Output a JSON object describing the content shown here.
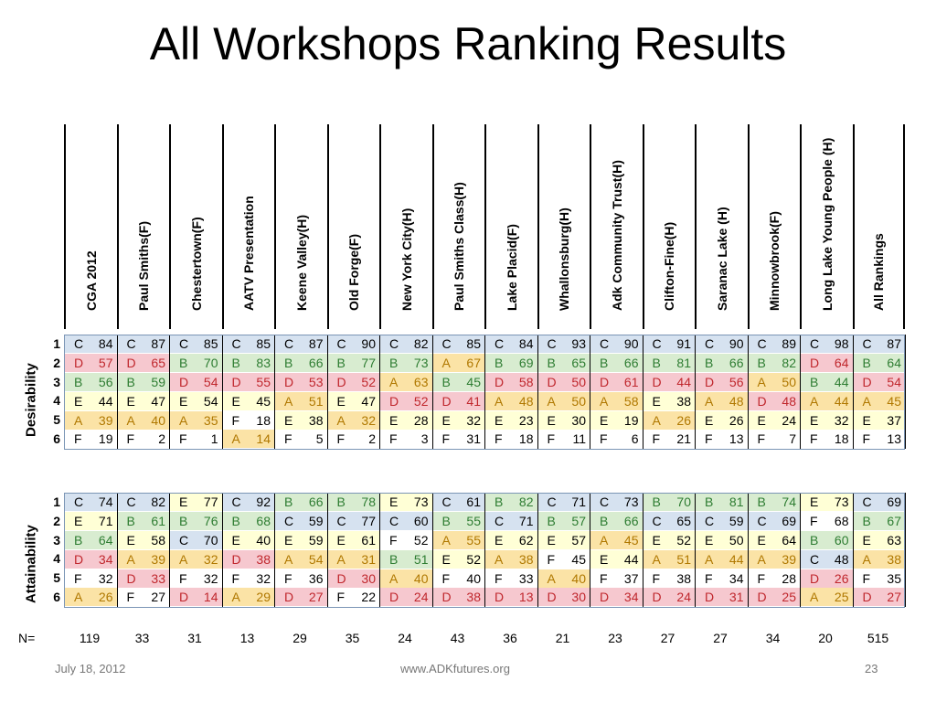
{
  "title": "All Workshops Ranking Results",
  "columns": [
    "CGA 2012",
    "Paul Smiths(F)",
    "Chestertown(F)",
    "AATV Presentation",
    "Keene Valley(H)",
    "Old Forge(F)",
    "New York City(H)",
    "Paul Smiths Class(H)",
    "Lake Placid(F)",
    "Whallonsburg(H)",
    "Adk Community Trust(H)",
    "Clifton-Fine(H)",
    "Saranac Lake (H)",
    "Minnowbrook(F)",
    "Long Lake Young People (H)",
    "All Rankings"
  ],
  "grade_colors": {
    "A": "#fbe3a6",
    "B": "#d8ecd0",
    "C": "#d6e2f0",
    "D": "#f6c8cf",
    "E": "#ffffd6",
    "F": "#ffffff"
  },
  "grade_text_colors": {
    "A": "#b07800",
    "B": "#2e7d32",
    "C": "#000000",
    "D": "#c0272d",
    "E": "#000000",
    "F": "#000000"
  },
  "desirability": {
    "label": "Desirability",
    "ranks": [
      "1",
      "2",
      "3",
      "4",
      "5",
      "6"
    ],
    "rows": [
      [
        [
          "C",
          "84"
        ],
        [
          "C",
          "87"
        ],
        [
          "C",
          "85"
        ],
        [
          "C",
          "85"
        ],
        [
          "C",
          "87"
        ],
        [
          "C",
          "90"
        ],
        [
          "C",
          "82"
        ],
        [
          "C",
          "85"
        ],
        [
          "C",
          "84"
        ],
        [
          "C",
          "93"
        ],
        [
          "C",
          "90"
        ],
        [
          "C",
          "91"
        ],
        [
          "C",
          "90"
        ],
        [
          "C",
          "89"
        ],
        [
          "C",
          "98"
        ],
        [
          "C",
          "87"
        ]
      ],
      [
        [
          "D",
          "57"
        ],
        [
          "D",
          "65"
        ],
        [
          "B",
          "70"
        ],
        [
          "B",
          "83"
        ],
        [
          "B",
          "66"
        ],
        [
          "B",
          "77"
        ],
        [
          "B",
          "73"
        ],
        [
          "A",
          "67"
        ],
        [
          "B",
          "69"
        ],
        [
          "B",
          "65"
        ],
        [
          "B",
          "66"
        ],
        [
          "B",
          "81"
        ],
        [
          "B",
          "66"
        ],
        [
          "B",
          "82"
        ],
        [
          "D",
          "64"
        ],
        [
          "B",
          "64"
        ]
      ],
      [
        [
          "B",
          "56"
        ],
        [
          "B",
          "59"
        ],
        [
          "D",
          "54"
        ],
        [
          "D",
          "55"
        ],
        [
          "D",
          "53"
        ],
        [
          "D",
          "52"
        ],
        [
          "A",
          "63"
        ],
        [
          "B",
          "45"
        ],
        [
          "D",
          "58"
        ],
        [
          "D",
          "50"
        ],
        [
          "D",
          "61"
        ],
        [
          "D",
          "44"
        ],
        [
          "D",
          "56"
        ],
        [
          "A",
          "50"
        ],
        [
          "B",
          "44"
        ],
        [
          "D",
          "54"
        ]
      ],
      [
        [
          "E",
          "44"
        ],
        [
          "E",
          "47"
        ],
        [
          "E",
          "54"
        ],
        [
          "E",
          "45"
        ],
        [
          "A",
          "51"
        ],
        [
          "E",
          "47"
        ],
        [
          "D",
          "52"
        ],
        [
          "D",
          "41"
        ],
        [
          "A",
          "48"
        ],
        [
          "A",
          "50"
        ],
        [
          "A",
          "58"
        ],
        [
          "E",
          "38"
        ],
        [
          "A",
          "48"
        ],
        [
          "D",
          "48"
        ],
        [
          "A",
          "44"
        ],
        [
          "A",
          "45"
        ]
      ],
      [
        [
          "A",
          "39"
        ],
        [
          "A",
          "40"
        ],
        [
          "A",
          "35"
        ],
        [
          "F",
          "18"
        ],
        [
          "E",
          "38"
        ],
        [
          "A",
          "32"
        ],
        [
          "E",
          "28"
        ],
        [
          "E",
          "32"
        ],
        [
          "E",
          "23"
        ],
        [
          "E",
          "30"
        ],
        [
          "E",
          "19"
        ],
        [
          "A",
          "26"
        ],
        [
          "E",
          "26"
        ],
        [
          "E",
          "24"
        ],
        [
          "E",
          "32"
        ],
        [
          "E",
          "37"
        ]
      ],
      [
        [
          "F",
          "19"
        ],
        [
          "F",
          "2"
        ],
        [
          "F",
          "1"
        ],
        [
          "A",
          "14"
        ],
        [
          "F",
          "5"
        ],
        [
          "F",
          "2"
        ],
        [
          "F",
          "3"
        ],
        [
          "F",
          "31"
        ],
        [
          "F",
          "18"
        ],
        [
          "F",
          "11"
        ],
        [
          "F",
          "6"
        ],
        [
          "F",
          "21"
        ],
        [
          "F",
          "13"
        ],
        [
          "F",
          "7"
        ],
        [
          "F",
          "18"
        ],
        [
          "F",
          "13"
        ]
      ]
    ]
  },
  "attainability": {
    "label": "Attainability",
    "ranks": [
      "1",
      "2",
      "3",
      "4",
      "5",
      "6"
    ],
    "rows": [
      [
        [
          "C",
          "74"
        ],
        [
          "C",
          "82"
        ],
        [
          "E",
          "77"
        ],
        [
          "C",
          "92"
        ],
        [
          "B",
          "66"
        ],
        [
          "B",
          "78"
        ],
        [
          "E",
          "73"
        ],
        [
          "C",
          "61"
        ],
        [
          "B",
          "82"
        ],
        [
          "C",
          "71"
        ],
        [
          "C",
          "73"
        ],
        [
          "B",
          "70"
        ],
        [
          "B",
          "81"
        ],
        [
          "B",
          "74"
        ],
        [
          "E",
          "73"
        ],
        [
          "C",
          "69"
        ]
      ],
      [
        [
          "E",
          "71"
        ],
        [
          "B",
          "61"
        ],
        [
          "B",
          "76"
        ],
        [
          "B",
          "68"
        ],
        [
          "C",
          "59"
        ],
        [
          "C",
          "77"
        ],
        [
          "C",
          "60"
        ],
        [
          "B",
          "55"
        ],
        [
          "C",
          "71"
        ],
        [
          "B",
          "57"
        ],
        [
          "B",
          "66"
        ],
        [
          "C",
          "65"
        ],
        [
          "C",
          "59"
        ],
        [
          "C",
          "69"
        ],
        [
          "F",
          "68"
        ],
        [
          "B",
          "67"
        ]
      ],
      [
        [
          "B",
          "64"
        ],
        [
          "E",
          "58"
        ],
        [
          "C",
          "70"
        ],
        [
          "E",
          "40"
        ],
        [
          "E",
          "59"
        ],
        [
          "E",
          "61"
        ],
        [
          "F",
          "52"
        ],
        [
          "A",
          "55"
        ],
        [
          "E",
          "62"
        ],
        [
          "E",
          "57"
        ],
        [
          "A",
          "45"
        ],
        [
          "E",
          "52"
        ],
        [
          "E",
          "50"
        ],
        [
          "E",
          "64"
        ],
        [
          "B",
          "60"
        ],
        [
          "E",
          "63"
        ]
      ],
      [
        [
          "D",
          "34"
        ],
        [
          "A",
          "39"
        ],
        [
          "A",
          "32"
        ],
        [
          "D",
          "38"
        ],
        [
          "A",
          "54"
        ],
        [
          "A",
          "31"
        ],
        [
          "B",
          "51"
        ],
        [
          "E",
          "52"
        ],
        [
          "A",
          "38"
        ],
        [
          "F",
          "45"
        ],
        [
          "E",
          "44"
        ],
        [
          "A",
          "51"
        ],
        [
          "A",
          "44"
        ],
        [
          "A",
          "39"
        ],
        [
          "C",
          "48"
        ],
        [
          "A",
          "38"
        ]
      ],
      [
        [
          "F",
          "32"
        ],
        [
          "D",
          "33"
        ],
        [
          "F",
          "32"
        ],
        [
          "F",
          "32"
        ],
        [
          "F",
          "36"
        ],
        [
          "D",
          "30"
        ],
        [
          "A",
          "40"
        ],
        [
          "F",
          "40"
        ],
        [
          "F",
          "33"
        ],
        [
          "A",
          "40"
        ],
        [
          "F",
          "37"
        ],
        [
          "F",
          "38"
        ],
        [
          "F",
          "34"
        ],
        [
          "F",
          "28"
        ],
        [
          "D",
          "26"
        ],
        [
          "F",
          "35"
        ]
      ],
      [
        [
          "A",
          "26"
        ],
        [
          "F",
          "27"
        ],
        [
          "D",
          "14"
        ],
        [
          "A",
          "29"
        ],
        [
          "D",
          "27"
        ],
        [
          "F",
          "22"
        ],
        [
          "D",
          "24"
        ],
        [
          "D",
          "38"
        ],
        [
          "D",
          "13"
        ],
        [
          "D",
          "30"
        ],
        [
          "D",
          "34"
        ],
        [
          "D",
          "24"
        ],
        [
          "D",
          "31"
        ],
        [
          "D",
          "25"
        ],
        [
          "A",
          "25"
        ],
        [
          "D",
          "27"
        ]
      ]
    ]
  },
  "n_label": "N=",
  "n_values": [
    "119",
    "33",
    "31",
    "13",
    "29",
    "35",
    "24",
    "43",
    "36",
    "21",
    "23",
    "27",
    "27",
    "34",
    "20",
    "515"
  ],
  "footer": {
    "date": "July 18, 2012",
    "site": "www.ADKfutures.org",
    "page": "23"
  }
}
